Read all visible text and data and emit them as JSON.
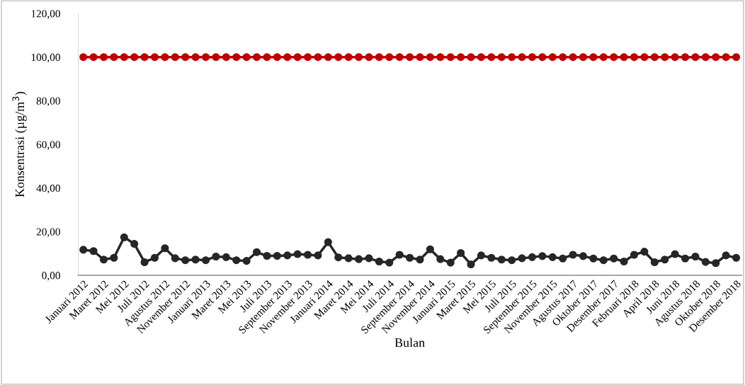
{
  "chart_data": {
    "type": "line",
    "xlabel": "Bulan",
    "ylabel": "Konsentrasi (µg/m$^{3}$)",
    "categories": [
      "Januari 2012",
      null,
      "Maret 2012",
      null,
      "Mei 2012",
      null,
      "Juli 2012",
      null,
      "Agustus 2012",
      null,
      "November 2012",
      null,
      "Januari 2013",
      null,
      "Maret 2013",
      null,
      "Mei 2013",
      null,
      "Juli 2013",
      null,
      "September 2013",
      null,
      "November 2013",
      null,
      "Januari 2014",
      null,
      "Maret 2014",
      null,
      "Mei 2014",
      null,
      "Juli 2014",
      null,
      "September 2014",
      null,
      "November 2014",
      null,
      "Januari 2015",
      null,
      "Maret 2015",
      null,
      "Mei 2015",
      null,
      "Juli 2015",
      null,
      "September 2015",
      null,
      "November 2015",
      null,
      "Agustus 2017",
      null,
      "Oktober 2017",
      null,
      "Desember 2017",
      null,
      "Februari 2018",
      null,
      "April 2018",
      null,
      "Juni 2018",
      null,
      "Agustus 2018",
      null,
      "Oktober 2018",
      null,
      "Desember 2018"
    ],
    "series": [
      {
        "color": "#262626",
        "values": [
          11.7,
          11.1,
          7.2,
          8.0,
          17.4,
          14.4,
          6.0,
          8.0,
          12.4,
          7.8,
          6.9,
          7.2,
          6.9,
          8.6,
          8.3,
          6.9,
          6.6,
          10.6,
          8.9,
          8.9,
          9.1,
          9.7,
          9.4,
          9.1,
          15.2,
          8.2,
          7.8,
          7.4,
          7.8,
          6.3,
          5.8,
          9.4,
          8.0,
          7.2,
          11.9,
          7.4,
          5.8,
          10.2,
          5.0,
          9.1,
          8.0,
          7.2,
          6.9,
          7.8,
          8.3,
          8.8,
          8.3,
          7.7,
          9.4,
          8.8,
          7.7,
          6.9,
          7.7,
          6.3,
          9.4,
          10.8,
          6.0,
          7.2,
          9.7,
          7.7,
          8.6,
          6.1,
          5.6,
          9.1,
          8.0
        ]
      },
      {
        "color": "#c00000",
        "values": [
          100,
          100,
          100,
          100,
          100,
          100,
          100,
          100,
          100,
          100,
          100,
          100,
          100,
          100,
          100,
          100,
          100,
          100,
          100,
          100,
          100,
          100,
          100,
          100,
          100,
          100,
          100,
          100,
          100,
          100,
          100,
          100,
          100,
          100,
          100,
          100,
          100,
          100,
          100,
          100,
          100,
          100,
          100,
          100,
          100,
          100,
          100,
          100,
          100,
          100,
          100,
          100,
          100,
          100,
          100,
          100,
          100,
          100,
          100,
          100,
          100,
          100,
          100,
          100,
          100
        ]
      }
    ],
    "ylim": [
      0,
      120
    ],
    "yticks": [
      {
        "value": 0,
        "label": "0,00"
      },
      {
        "value": 20,
        "label": "20,00"
      },
      {
        "value": 40,
        "label": "40,00"
      },
      {
        "value": 60,
        "label": "60,00"
      },
      {
        "value": 80,
        "label": "80,00"
      },
      {
        "value": 100,
        "label": "100,00"
      },
      {
        "value": 120,
        "label": "120,00"
      }
    ],
    "grid": false,
    "legend": false,
    "marker": "circle",
    "line_style": "solid"
  }
}
